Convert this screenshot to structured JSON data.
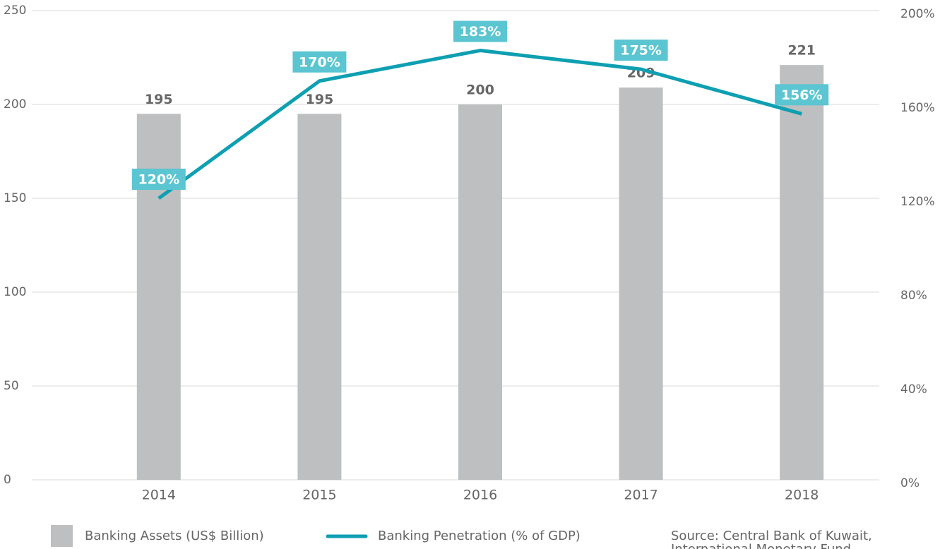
{
  "chart_data": {
    "type": "bar_line",
    "categories": [
      "2014",
      "2015",
      "2016",
      "2017",
      "2018"
    ],
    "series": [
      {
        "name": "Banking Assets (US$ Billion)",
        "type": "bar",
        "color": "#bdbfc0",
        "values": [
          195,
          195,
          200,
          209,
          221
        ]
      },
      {
        "name": "Banking Penetration (% of GDP)",
        "type": "line",
        "axis": "y2",
        "color": "#0e9fb2",
        "label_color": "#5bc5d2",
        "values": [
          120,
          170,
          183,
          175,
          156
        ],
        "value_labels": [
          "120%",
          "170%",
          "183%",
          "175%",
          "156%"
        ]
      }
    ],
    "ylim": [
      0,
      250
    ],
    "yticks": [
      0,
      50,
      100,
      150,
      200,
      250
    ],
    "y2lim": [
      0,
      200
    ],
    "y2ticks": [
      {
        "value": 0,
        "label": "0%"
      },
      {
        "value": 40,
        "label": "40%"
      },
      {
        "value": 80,
        "label": "80%"
      },
      {
        "value": 120,
        "label": "120%"
      },
      {
        "value": 160,
        "label": "160%"
      },
      {
        "value": 200,
        "label": "200%"
      }
    ],
    "grid": true,
    "source": [
      "Source: Central Bank of Kuwait,",
      "International Monetary Fund"
    ]
  }
}
